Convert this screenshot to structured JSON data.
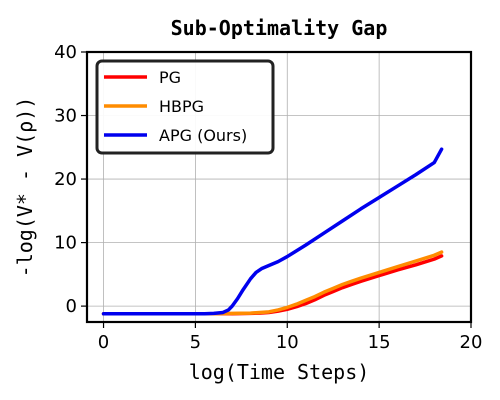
{
  "chart_data": {
    "type": "line",
    "title": "Sub-Optimality Gap",
    "xlabel": "log(Time Steps)",
    "ylabel": "-log(V* - V(ρ))",
    "xlim": [
      -0.9,
      20
    ],
    "ylim": [
      -2.5,
      40
    ],
    "xticks": [
      0,
      5,
      10,
      15,
      20
    ],
    "yticks": [
      0,
      10,
      20,
      30,
      40
    ],
    "grid": true,
    "legend_position": "top-left",
    "series": [
      {
        "name": "PG",
        "color": "#ff0000",
        "x": [
          0,
          2,
          4,
          6,
          7,
          8,
          8.5,
          9,
          9.5,
          10,
          10.5,
          11,
          11.5,
          12,
          12.5,
          13,
          13.5,
          14,
          15,
          16,
          17,
          18,
          18.4
        ],
        "y": [
          -1.2,
          -1.2,
          -1.2,
          -1.2,
          -1.2,
          -1.15,
          -1.1,
          -1.0,
          -0.8,
          -0.5,
          -0.1,
          0.4,
          1.0,
          1.7,
          2.3,
          2.9,
          3.4,
          3.9,
          4.8,
          5.7,
          6.5,
          7.4,
          7.9
        ]
      },
      {
        "name": "HBPG",
        "color": "#ff8c00",
        "x": [
          0,
          2,
          4,
          6,
          7,
          8,
          8.5,
          9,
          9.5,
          10,
          10.5,
          11,
          11.5,
          12,
          12.5,
          13,
          13.5,
          14,
          15,
          16,
          17,
          18,
          18.4
        ],
        "y": [
          -1.2,
          -1.2,
          -1.2,
          -1.2,
          -1.15,
          -1.1,
          -1.0,
          -0.9,
          -0.6,
          -0.2,
          0.3,
          0.9,
          1.5,
          2.2,
          2.8,
          3.4,
          3.9,
          4.4,
          5.3,
          6.2,
          7.1,
          8.0,
          8.5
        ]
      },
      {
        "name": "APG (Ours)",
        "color": "#0000ee",
        "x": [
          0,
          2,
          4,
          5.5,
          6,
          6.5,
          6.8,
          7,
          7.3,
          7.6,
          8,
          8.3,
          8.6,
          9,
          9.5,
          10,
          11,
          12,
          13,
          14,
          15,
          16,
          17,
          18,
          18.4
        ],
        "y": [
          -1.2,
          -1.2,
          -1.2,
          -1.2,
          -1.15,
          -1.0,
          -0.6,
          0.0,
          1.2,
          2.6,
          4.3,
          5.3,
          5.9,
          6.4,
          7.0,
          7.8,
          9.6,
          11.5,
          13.4,
          15.3,
          17.1,
          18.9,
          20.7,
          22.6,
          24.7
        ]
      }
    ]
  }
}
